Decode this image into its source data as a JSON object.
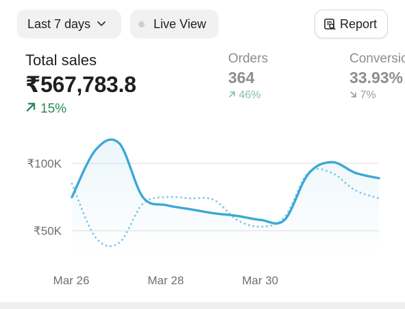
{
  "toolbar": {
    "range_label": "Last 7 days",
    "live_label": "Live View",
    "report_label": "Report"
  },
  "metrics": {
    "total_sales": {
      "label": "Total sales",
      "value": "₹567,783.8",
      "delta": "15%",
      "trend": "up"
    },
    "orders": {
      "label": "Orders",
      "value": "364",
      "delta": "46%",
      "trend": "up"
    },
    "conversion": {
      "label": "Conversio",
      "value": "33.93%",
      "delta": "7%",
      "trend": "down"
    }
  },
  "icons": {
    "range": "chevron-down-icon",
    "live": "status-dot-icon",
    "report": "report-icon",
    "delta_up": "arrow-up-right-icon",
    "delta_down": "arrow-down-right-icon"
  },
  "colors": {
    "current": "#3aa8d6",
    "comparison": "#86cbe6",
    "positive": "#2b8a57",
    "grid": "#e4e4e4"
  },
  "chart_data": {
    "type": "line",
    "x_ticks": [
      "Mar 26",
      "Mar 28",
      "Mar 30"
    ],
    "y_ticks": [
      "₹100K",
      "₹50K"
    ],
    "y_tick_values": [
      100000,
      50000
    ],
    "ylim": [
      20000,
      140000
    ],
    "x": [
      0,
      0.5,
      1,
      1.5,
      2,
      2.5,
      3,
      3.5,
      4,
      4.5,
      5,
      5.5,
      6,
      6.5
    ],
    "series": [
      {
        "name": "",
        "style": "solid",
        "values": [
          75000,
          110000,
          115000,
          75000,
          69000,
          66000,
          63000,
          61000,
          58000,
          58000,
          92000,
          101000,
          93000,
          89000
        ]
      },
      {
        "name": "",
        "style": "dotted",
        "values": [
          85000,
          45000,
          41000,
          70000,
          75000,
          74000,
          73000,
          58000,
          53000,
          60000,
          93000,
          93000,
          80000,
          74000
        ]
      }
    ],
    "grid": true,
    "legend": "none"
  }
}
